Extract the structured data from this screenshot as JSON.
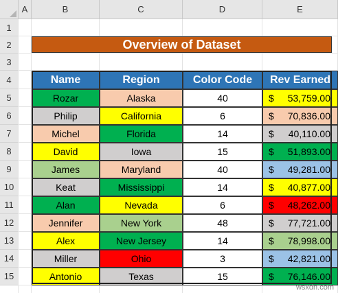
{
  "columns": [
    "A",
    "B",
    "C",
    "D",
    "E"
  ],
  "rows": [
    "1",
    "2",
    "3",
    "4",
    "5",
    "6",
    "7",
    "8",
    "9",
    "10",
    "11",
    "12",
    "13",
    "14",
    "15"
  ],
  "title": "Overview of Dataset",
  "headers": [
    "Name",
    "Region",
    "Color Code",
    "Rev Earned"
  ],
  "currency": "$",
  "records": [
    {
      "name": "Rozar",
      "region": "Alaska",
      "code": "40",
      "rev": "53,759.00",
      "c_name": "#00b050",
      "c_region": "#f8cbad",
      "c_rev": "#ffff00"
    },
    {
      "name": "Philip",
      "region": "California",
      "code": "6",
      "rev": "70,836.00",
      "c_name": "#d0cece",
      "c_region": "#ffff00",
      "c_rev": "#f8cbad"
    },
    {
      "name": "Michel",
      "region": "Florida",
      "code": "14",
      "rev": "40,110.00",
      "c_name": "#f8cbad",
      "c_region": "#00b050",
      "c_rev": "#d0cece"
    },
    {
      "name": "David",
      "region": "Iowa",
      "code": "15",
      "rev": "51,893.00",
      "c_name": "#ffff00",
      "c_region": "#d0cece",
      "c_rev": "#00b050"
    },
    {
      "name": "James",
      "region": "Maryland",
      "code": "40",
      "rev": "49,281.00",
      "c_name": "#a9d08e",
      "c_region": "#f8cbad",
      "c_rev": "#9bc2e6"
    },
    {
      "name": "Keat",
      "region": "Mississippi",
      "code": "14",
      "rev": "40,877.00",
      "c_name": "#d0cece",
      "c_region": "#00b050",
      "c_rev": "#ffff00"
    },
    {
      "name": "Alan",
      "region": "Nevada",
      "code": "6",
      "rev": "48,262.00",
      "c_name": "#00b050",
      "c_region": "#ffff00",
      "c_rev": "#ff0000"
    },
    {
      "name": "Jennifer",
      "region": "New York",
      "code": "48",
      "rev": "77,721.00",
      "c_name": "#f8cbad",
      "c_region": "#a9d08e",
      "c_rev": "#d0cece"
    },
    {
      "name": "Alex",
      "region": "New Jersey",
      "code": "14",
      "rev": "78,998.00",
      "c_name": "#ffff00",
      "c_region": "#00b050",
      "c_rev": "#a9d08e"
    },
    {
      "name": "Miller",
      "region": "Ohio",
      "code": "3",
      "rev": "42,821.00",
      "c_name": "#d0cece",
      "c_region": "#ff0000",
      "c_rev": "#9bc2e6"
    },
    {
      "name": "Antonio",
      "region": "Texas",
      "code": "15",
      "rev": "76,146.00",
      "c_name": "#ffff00",
      "c_region": "#d0cece",
      "c_rev": "#00b050"
    }
  ],
  "colors": {
    "title_bg": "#c55a11",
    "header_bg": "#2e75b6"
  },
  "watermark": "wsxdn.com"
}
